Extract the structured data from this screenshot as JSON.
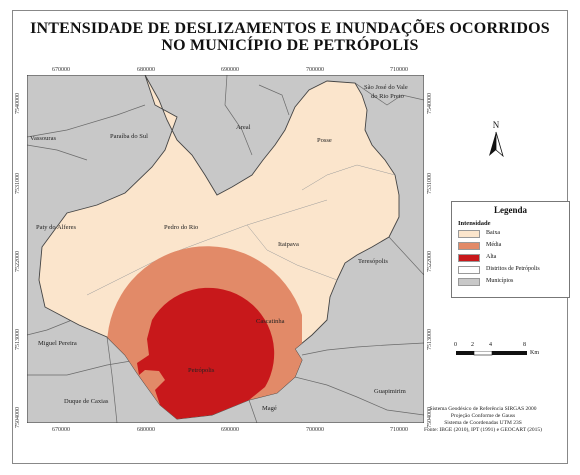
{
  "title_line1": "INTENSIDADE DE DESLIZAMENTOS E INUNDAÇÕES OCORRIDOS",
  "title_line2": "NO MUNICÍPIO DE PETRÓPOLIS",
  "x_ticks": [
    "670000",
    "680000",
    "690000",
    "700000",
    "710000"
  ],
  "y_ticks": [
    "7540000",
    "7531000",
    "7522000",
    "7513000",
    "7504000"
  ],
  "places": {
    "sao_jose": "São José do Vale",
    "sao_jose_2": "do Rio Preto",
    "vassouras": "Vassouras",
    "paraiba": "Paraíba do Sul",
    "areal": "Areal",
    "posse": "Posse",
    "pedro_do_rio": "Pedro do Rio",
    "paty": "Paty do Alferes",
    "itaipava": "Itaipava",
    "teresopolis": "Teresópolis",
    "miguel_pereira": "Miguel Pereira",
    "cascatinha": "Cascatinha",
    "petropolis": "Petrópolis",
    "duque": "Duque de Caxias",
    "mage": "Magé",
    "guapimirim": "Guapimirim"
  },
  "legend": {
    "title": "Legenda",
    "subtitle": "Intensidade",
    "items": [
      {
        "label": "Baixa",
        "color": "#fbe5cc"
      },
      {
        "label": "Média",
        "color": "#e28a68"
      },
      {
        "label": "Alta",
        "color": "#c8181b"
      },
      {
        "label": "Distritos de Petrópolis",
        "color": "#ffffff"
      },
      {
        "label": "Municípios",
        "color": "#c8c8c8"
      }
    ]
  },
  "north_label": "N",
  "scale": {
    "ticks": [
      "0",
      "2",
      "4",
      "8"
    ],
    "unit": "Km"
  },
  "credits": [
    "Sistema Geodésico de Referência SIRGAS 2000",
    "Projeção Conforme de Gauss",
    "Sistema de Coordenadas UTM 23S",
    "Fonte: IBGE (2010), IPT (1991) e GEOCART (2015)"
  ],
  "colors": {
    "municipios": "#c8c8c8",
    "baixa": "#fbe5cc",
    "media": "#e28a68",
    "alta": "#c8181b"
  }
}
